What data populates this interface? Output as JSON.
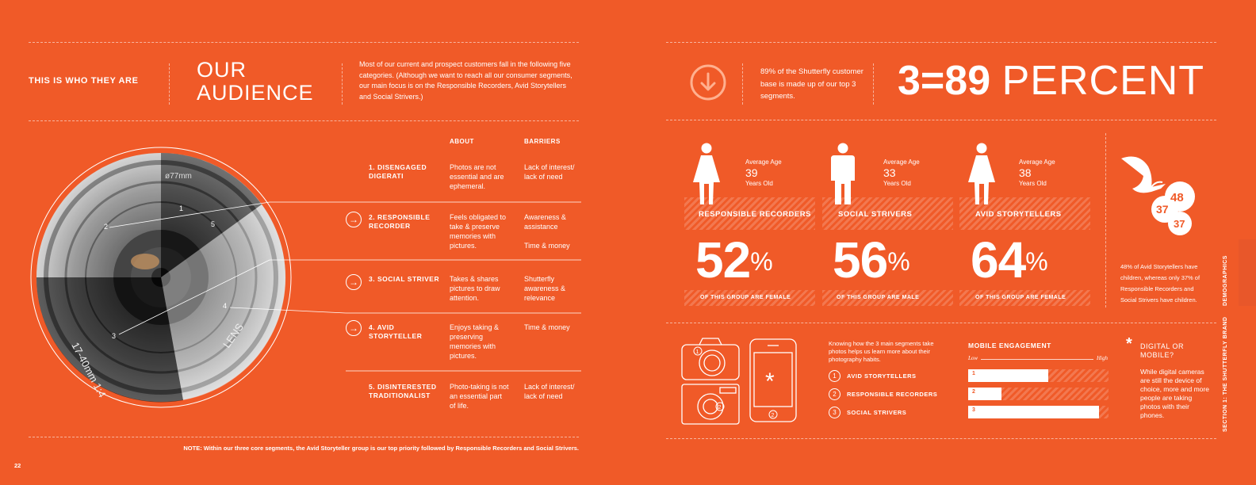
{
  "left": {
    "kicker": "THIS IS WHO THEY ARE",
    "title_line1": "OUR",
    "title_line2": "AUDIENCE",
    "intro": "Most of our current and prospect customers fall in the following five categories. (Although we want to reach all our consumer segments, our main focus is on the Responsible Recorders, Avid Storytellers and Social Strivers.)",
    "col_about": "ABOUT",
    "col_barriers": "BARRIERS",
    "segments": [
      {
        "label": "1. DISENGAGED DIGERATI",
        "about": "Photos are not essential and are ephemeral.",
        "barriers": "Lack of interest/ lack of need",
        "barriers2": ""
      },
      {
        "label": "2. RESPONSIBLE RECORDER",
        "about": "Feels obligated to take & preserve memories with pictures.",
        "barriers": "Awareness & assistance",
        "barriers2": "Time & money"
      },
      {
        "label": "3. SOCIAL STRIVER",
        "about": "Takes & shares pictures to draw attention.",
        "barriers": "Shutterfly awareness & relevance",
        "barriers2": ""
      },
      {
        "label": "4. AVID STORYTELLER",
        "about": "Enjoys taking & preserving memories with pictures.",
        "barriers": "Time & money",
        "barriers2": ""
      },
      {
        "label": "5. DISINTERESTED TRADITIONALIST",
        "about": "Photo-taking is not an essential part of life.",
        "barriers": "Lack of interest/ lack of need",
        "barriers2": ""
      }
    ],
    "lens_numbers": [
      "1",
      "2",
      "3",
      "4",
      "5"
    ],
    "lens_text_top": "ø77mm",
    "lens_text_left": "17-40mm 1:4",
    "lens_text_right": "LENS",
    "note": "NOTE: Within our three core segments, the Avid Storyteller group is our top priority followed by Responsible Recorders and Social Strivers.",
    "page_number": "22"
  },
  "right": {
    "stat_text": "89% of the Shutterfly customer base is made up of our top 3 segments.",
    "headline_a": "3=89",
    "headline_b": "PERCENT",
    "groups": [
      {
        "age_label": "Average Age",
        "age": "39",
        "age_unit": "Years Old",
        "name": "RESPONSIBLE RECORDERS",
        "pct": "52",
        "pct_sign": "%",
        "caption": "OF THIS GROUP ARE FEMALE",
        "icon": "female-icon"
      },
      {
        "age_label": "Average Age",
        "age": "33",
        "age_unit": "Years Old",
        "name": "SOCIAL STRIVERS",
        "pct": "56",
        "pct_sign": "%",
        "caption": "OF THIS GROUP ARE MALE",
        "icon": "male-icon"
      },
      {
        "age_label": "Average Age",
        "age": "38",
        "age_unit": "Years Old",
        "name": "AVID STORYTELLERS",
        "pct": "64",
        "pct_sign": "%",
        "caption": "OF THIS GROUP ARE FEMALE",
        "icon": "female-icon"
      }
    ],
    "stork_numbers": [
      "48",
      "37",
      "37"
    ],
    "stork_text": "48% of Avid Storytellers have children, whereas only 37% of Responsible Recorders and Social Strivers have children.",
    "habits_intro": "Knowing how the 3 main segments take photos helps us learn more about their photography habits.",
    "habits_list": [
      {
        "num": "1",
        "label": "AVID STORYTELLERS"
      },
      {
        "num": "2",
        "label": "RESPONSIBLE RECORDERS"
      },
      {
        "num": "3",
        "label": "SOCIAL STRIVERS"
      }
    ],
    "device_numbers": [
      "1",
      "2",
      "2"
    ],
    "phone_symbol": "*",
    "mobile_title": "MOBILE ENGAGEMENT",
    "low_label": "Low",
    "high_label": "High",
    "mobile_bars": [
      {
        "label": "1",
        "value": 0.57
      },
      {
        "label": "2",
        "value": 0.24
      },
      {
        "label": "3",
        "value": 0.93
      }
    ],
    "digital_asterisk": "*",
    "digital_title": "DIGITAL OR MOBILE?",
    "digital_text": "While digital cameras are still the device of choice, more and more people are taking photos with their phones.",
    "side_tab_demographics": "DEMOGRAPHICS",
    "side_tab_section": "SECTION 1: THE SHUTTERFLY BRAND"
  },
  "colors": {
    "background": "#f05a28",
    "accent_dark": "#c94518",
    "white": "#ffffff"
  }
}
